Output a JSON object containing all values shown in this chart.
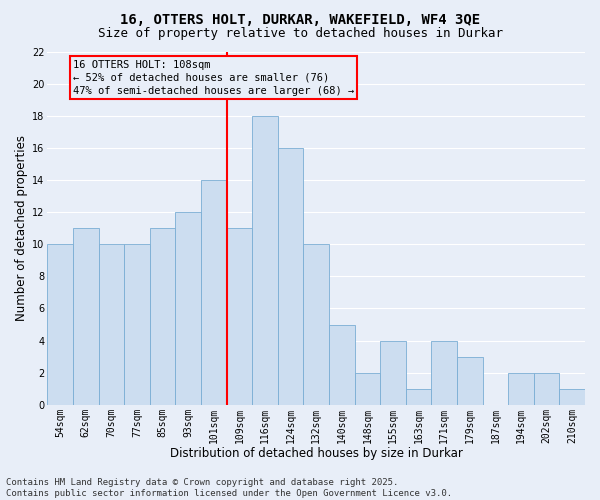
{
  "title1": "16, OTTERS HOLT, DURKAR, WAKEFIELD, WF4 3QE",
  "title2": "Size of property relative to detached houses in Durkar",
  "xlabel": "Distribution of detached houses by size in Durkar",
  "ylabel": "Number of detached properties",
  "categories": [
    "54sqm",
    "62sqm",
    "70sqm",
    "77sqm",
    "85sqm",
    "93sqm",
    "101sqm",
    "109sqm",
    "116sqm",
    "124sqm",
    "132sqm",
    "140sqm",
    "148sqm",
    "155sqm",
    "163sqm",
    "171sqm",
    "179sqm",
    "187sqm",
    "194sqm",
    "202sqm",
    "210sqm"
  ],
  "values": [
    10,
    11,
    10,
    10,
    11,
    12,
    14,
    11,
    18,
    16,
    10,
    5,
    2,
    4,
    1,
    4,
    3,
    0,
    2,
    2,
    1
  ],
  "bar_color": "#ccddf0",
  "bar_edge_color": "#7aadd4",
  "annotation_text": "16 OTTERS HOLT: 108sqm\n← 52% of detached houses are smaller (76)\n47% of semi-detached houses are larger (68) →",
  "ylim": [
    0,
    22
  ],
  "yticks": [
    0,
    2,
    4,
    6,
    8,
    10,
    12,
    14,
    16,
    18,
    20,
    22
  ],
  "footer1": "Contains HM Land Registry data © Crown copyright and database right 2025.",
  "footer2": "Contains public sector information licensed under the Open Government Licence v3.0.",
  "bg_color": "#e8eef8",
  "grid_color": "#ffffff",
  "ref_bar_index": 7,
  "title1_fontsize": 10,
  "title2_fontsize": 9,
  "axis_label_fontsize": 8.5,
  "tick_fontsize": 7,
  "footer_fontsize": 6.5,
  "ann_fontsize": 7.5
}
